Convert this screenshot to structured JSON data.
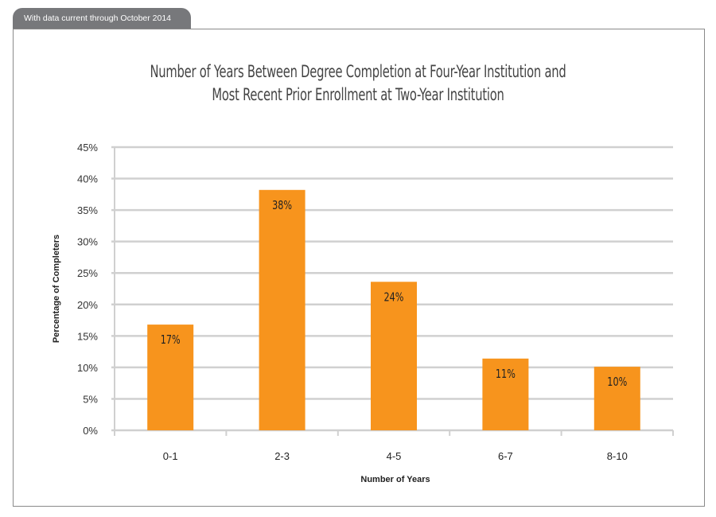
{
  "header": {
    "tab_label": "With data current through October 2014"
  },
  "chart_data": {
    "type": "bar",
    "title_lines": [
      "Number of Years Between Degree Completion at Four-Year Institution and",
      "Most Recent Prior Enrollment at Two-Year Institution"
    ],
    "xlabel": "Number of Years",
    "ylabel": "Percentage of Completers",
    "categories": [
      "0-1",
      "2-3",
      "4-5",
      "6-7",
      "8-10"
    ],
    "values": [
      16.8,
      38.2,
      23.6,
      11.4,
      10.1
    ],
    "data_labels": [
      "17%",
      "38%",
      "24%",
      "11%",
      "10%"
    ],
    "ylim": [
      0,
      45
    ],
    "yticks": [
      0,
      5,
      10,
      15,
      20,
      25,
      30,
      35,
      40,
      45
    ],
    "ytick_labels": [
      "0%",
      "5%",
      "10%",
      "15%",
      "20%",
      "25%",
      "30%",
      "35%",
      "40%",
      "45%"
    ],
    "grid": true,
    "legend": "none",
    "colors": {
      "bar": "#f7941d",
      "grid": "#d0d0d0",
      "tab": "#77787b"
    }
  }
}
